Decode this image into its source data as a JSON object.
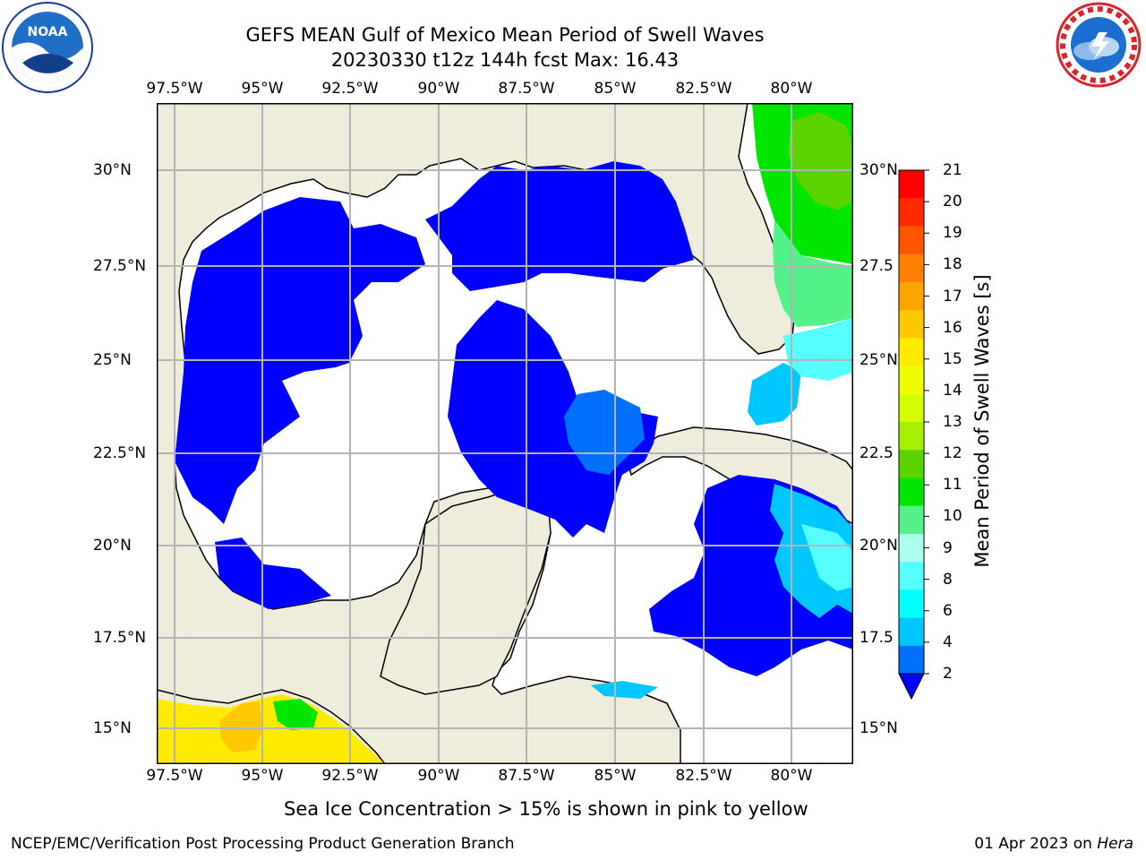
{
  "title_line1": "GEFS MEAN Gulf of Mexico Mean Period of Swell Waves",
  "title_line2": "20230330 t12z 144h fcst   Max: 16.43",
  "x_ticks": [
    "97.5°W",
    "95°W",
    "92.5°W",
    "90°W",
    "87.5°W",
    "85°W",
    "82.5°W",
    "80°W"
  ],
  "y_ticks": [
    "30°N",
    "27.5°N",
    "25°N",
    "22.5°N",
    "20°N",
    "17.5°N",
    "15°N"
  ],
  "y_ticks_right": [
    "30°N",
    "27.5",
    "25°N",
    "22.5",
    "20°N",
    "17.5",
    "15°N"
  ],
  "colorbar": {
    "title": "Mean Period of Swell Waves [s]",
    "labels": [
      "21",
      "20",
      "19",
      "18",
      "17",
      "16",
      "15",
      "14",
      "13",
      "12",
      "11",
      "10",
      "9",
      "8",
      "6",
      "4",
      "2"
    ],
    "colors": [
      "#ff0000",
      "#ff2a00",
      "#ff5500",
      "#ff7f00",
      "#ffa500",
      "#ffc800",
      "#ffeb00",
      "#f0ff00",
      "#d4ff00",
      "#a5f000",
      "#5ad300",
      "#00e600",
      "#55f28c",
      "#aaffee",
      "#55ffff",
      "#00ffff",
      "#00c8ff",
      "#0070ff"
    ]
  },
  "ice_note": "Sea Ice Concentration > 15% is shown in pink to yellow",
  "footer_left": "NCEP/EMC/Verification Post Processing Product Generation Branch",
  "footer_right_date": "01 Apr 2023 on",
  "footer_right_host": "Hera",
  "logos": {
    "left": "noaa-logo",
    "right": "nws-logo"
  },
  "land_color": "#eeecdb",
  "water_blue": "#0000ff"
}
